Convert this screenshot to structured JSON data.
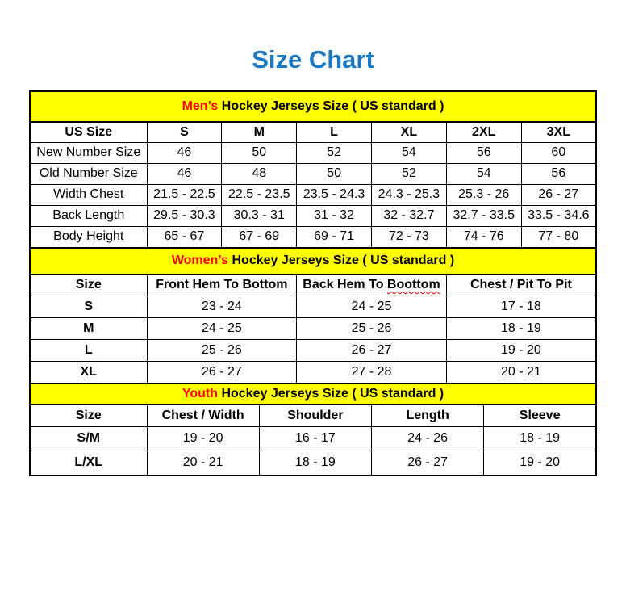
{
  "title": "Size Chart",
  "colors": {
    "title_blue": "#1b78c4",
    "band_yellow": "#ffff00",
    "highlight_red": "#ff0000",
    "squiggle_red": "#c00000",
    "border_black": "#000000"
  },
  "sections": {
    "men": {
      "band_highlight": "Men’s",
      "band_rest": " Hockey Jerseys Size ( US standard )",
      "header": [
        "US Size",
        "S",
        "M",
        "L",
        "XL",
        "2XL",
        "3XL"
      ],
      "rows": [
        {
          "label": "New Number Size",
          "values": [
            "46",
            "50",
            "52",
            "54",
            "56",
            "60"
          ]
        },
        {
          "label": "Old Number Size",
          "values": [
            "46",
            "48",
            "50",
            "52",
            "54",
            "56"
          ]
        },
        {
          "label": "Width Chest",
          "values": [
            "21.5 - 22.5",
            "22.5 - 23.5",
            "23.5 - 24.3",
            "24.3 - 25.3",
            "25.3 - 26",
            "26 - 27"
          ]
        },
        {
          "label": "Back Length",
          "values": [
            "29.5 - 30.3",
            "30.3 - 31",
            "31 - 32",
            "32 - 32.7",
            "32.7 - 33.5",
            "33.5 - 34.6"
          ]
        },
        {
          "label": "Body Height",
          "values": [
            "65 - 67",
            "67 - 69",
            "69 - 71",
            "72 - 73",
            "74 - 76",
            "77 - 80"
          ]
        }
      ]
    },
    "women": {
      "band_highlight": "Women’s",
      "band_rest": " Hockey Jerseys Size ( US standard )",
      "header": [
        "Size",
        "Front Hem To Bottom",
        {
          "prefix": "Back Hem To ",
          "word": "Boottom"
        },
        "Chest / Pit To Pit"
      ],
      "rows": [
        {
          "label": "S",
          "values": [
            "23 - 24",
            "24 - 25",
            "17 - 18"
          ]
        },
        {
          "label": "M",
          "values": [
            "24 - 25",
            "25 - 26",
            "18 - 19"
          ]
        },
        {
          "label": "L",
          "values": [
            "25 - 26",
            "26 - 27",
            "19 - 20"
          ]
        },
        {
          "label": "XL",
          "values": [
            "26 - 27",
            "27 - 28",
            "20 - 21"
          ]
        }
      ]
    },
    "youth": {
      "band_highlight": "Youth",
      "band_rest": " Hockey Jerseys Size ( US standard )",
      "header": [
        "Size",
        "Chest / Width",
        "Shoulder",
        "Length",
        "Sleeve"
      ],
      "rows": [
        {
          "label": "S/M",
          "values": [
            "19 - 20",
            "16 - 17",
            "24 - 26",
            "18 - 19"
          ]
        },
        {
          "label": "L/XL",
          "values": [
            "20 - 21",
            "18 - 19",
            "26 - 27",
            "19 - 20"
          ]
        }
      ]
    }
  }
}
